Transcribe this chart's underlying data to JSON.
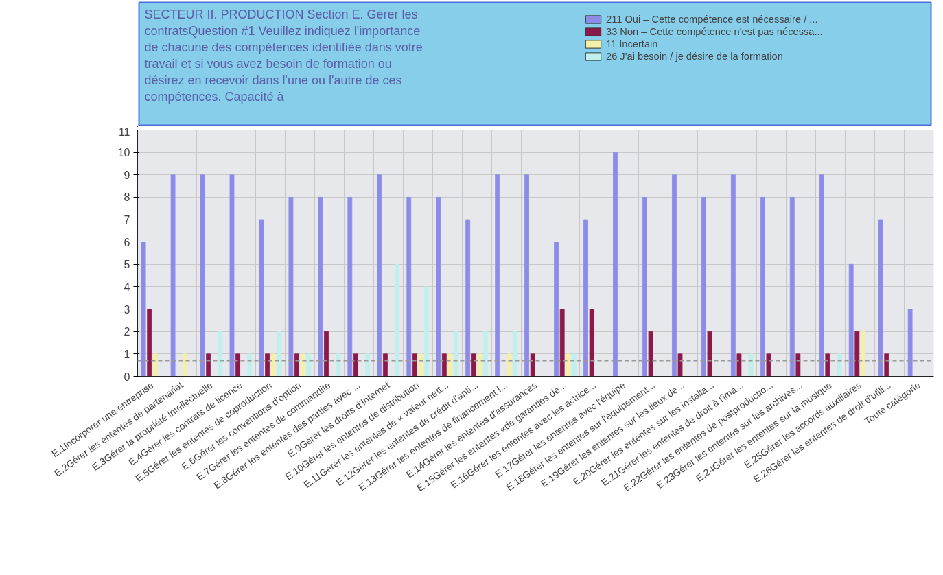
{
  "chart_data": {
    "type": "bar",
    "title": "SECTEUR II. PRODUCTION Section E. Gérer les contratsQuestion #1 Veuillez indiquez l'importance de chacune des compétences identifiée dans votre travail et si vous avez besoin de formation ou désirez en recevoir dans l'une ou l'autre de ces compétences. Capacité à",
    "categories": [
      "E.1Incorporer une entreprise",
      "E.2Gérer les ententes de partenariat",
      "E.3Gérer la propriété intellectuelle",
      "E.4Gérer les contrats de licence",
      "E.5Gérer les ententes de coproduction",
      "E.6Gérer les conventions d'option",
      "E.7Gérer les ententes de commandite",
      "E.8Gérer les ententes des parties avec ...",
      "E.9Gérer les droits d'Internet",
      "E.10Gérer les ententes de distribution",
      "E.11Gérer les ententes de « valeur nett...",
      "E.12Gérer les ententes de crédit d'anti...",
      "E.13Gérer les ententes de financement l...",
      "E.14Gérer les ententes d'assurances",
      "E.15Gérer les ententes «de garanties de...",
      "E.16Gérer les ententes avec les actrice...",
      "E.17Gérer les ententes avec l'équipe",
      "E.18Gérer les ententes sur l'équipement...",
      "E.19Gérer les ententes sur les lieux de...",
      "E.20Gérer les ententes sur les installa...",
      "E.21Gérer les ententes de droit à l'ima...",
      "E.22Gérer les ententes de postproductio...",
      "E.23Gérer les ententes sur les archives...",
      "E.24Gérer les ententes sur la musique",
      "E.25Gérer les accords auxiliaires",
      "E.26Gérer les ententes de droit d'utili...",
      "Toute catégorie"
    ],
    "series": [
      {
        "name": "211 Oui – Cette compétence est nécessaire / ...",
        "color": "#8c8ce8",
        "values": [
          6,
          9,
          9,
          9,
          7,
          8,
          8,
          8,
          9,
          8,
          8,
          7,
          9,
          9,
          6,
          7,
          10,
          8,
          9,
          8,
          9,
          8,
          8,
          9,
          5,
          7,
          3
        ]
      },
      {
        "name": "33 Non – Cette compétence n'est pas nécessa...",
        "color": "#8b1a4a",
        "values": [
          3,
          0,
          1,
          1,
          1,
          1,
          2,
          1,
          1,
          1,
          1,
          1,
          0,
          1,
          3,
          3,
          0,
          2,
          1,
          2,
          1,
          1,
          1,
          1,
          2,
          1,
          0
        ]
      },
      {
        "name": "11 Incertain",
        "color": "#f5f0a8",
        "values": [
          1,
          1,
          0,
          0,
          1,
          1,
          0,
          0,
          0,
          1,
          1,
          1,
          1,
          0,
          1,
          0,
          0,
          0,
          0,
          0,
          0,
          0,
          0,
          0,
          2,
          0,
          0
        ]
      },
      {
        "name": "26 J'ai besoin / je désire de la formation",
        "color": "#c0f0ec",
        "values": [
          0,
          0,
          2,
          1,
          2,
          1,
          1,
          1,
          5,
          4,
          2,
          2,
          2,
          0,
          1,
          0,
          0,
          0,
          0,
          0,
          1,
          0,
          0,
          1,
          0,
          0,
          0
        ]
      }
    ],
    "ylim": [
      0,
      11
    ],
    "yticks": [
      0,
      1,
      2,
      3,
      4,
      5,
      6,
      7,
      8,
      9,
      10,
      11
    ],
    "ref_lines": [
      {
        "axis": "y",
        "value": 0.7,
        "color": "#999999",
        "line_style": "dashed"
      }
    ],
    "grid": true,
    "legend": "top right"
  }
}
